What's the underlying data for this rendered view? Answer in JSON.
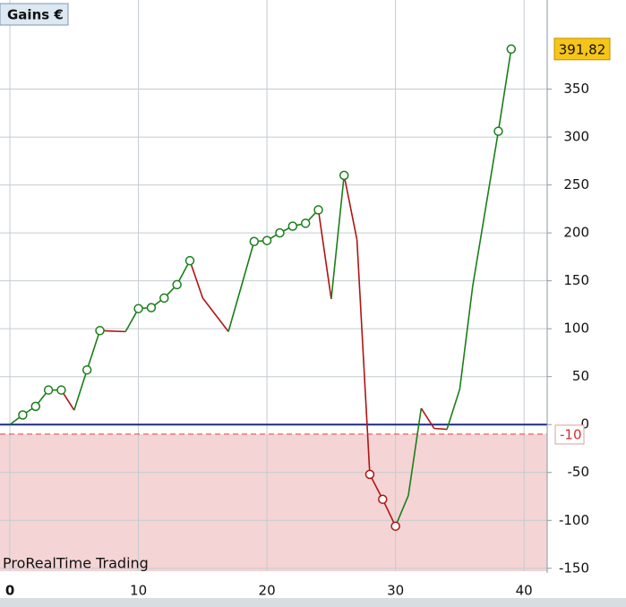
{
  "chart_data": {
    "type": "line",
    "title": "Gains €",
    "watermark": "ProRealTime Trading",
    "x": [
      0,
      1,
      2,
      3,
      4,
      5,
      6,
      7,
      9,
      10,
      11,
      12,
      13,
      14,
      15,
      17,
      19,
      20,
      21,
      22,
      23,
      24,
      25,
      26,
      27,
      28,
      29,
      30,
      31,
      32,
      33,
      34,
      35,
      36,
      38,
      39
    ],
    "values": [
      0,
      10,
      19,
      36,
      36,
      15,
      57,
      98,
      97,
      121,
      122,
      132,
      146,
      171,
      132,
      97,
      191,
      192,
      200,
      207,
      210,
      224,
      131,
      260,
      193,
      -52,
      -78,
      -106,
      -74,
      17,
      -4,
      -5,
      37,
      144,
      306,
      391.82
    ],
    "markers": [
      false,
      true,
      true,
      true,
      true,
      false,
      true,
      true,
      false,
      true,
      true,
      true,
      true,
      true,
      false,
      false,
      true,
      true,
      true,
      true,
      true,
      true,
      false,
      true,
      false,
      true,
      true,
      true,
      false,
      false,
      false,
      false,
      false,
      false,
      true,
      true
    ],
    "up_color": "#1a7f1a",
    "down_color": "#b01414",
    "last_value": {
      "value": 391.82,
      "label": "391,82"
    },
    "threshold": {
      "value": -10,
      "label": "-10"
    },
    "xlim": [
      -0.77,
      41.8
    ],
    "ylim": [
      -153,
      443
    ],
    "xticks": [
      0,
      10,
      20,
      30,
      40
    ],
    "yticks": [
      -150,
      -100,
      -50,
      0,
      50,
      100,
      150,
      200,
      250,
      300,
      350
    ],
    "grid": true
  }
}
